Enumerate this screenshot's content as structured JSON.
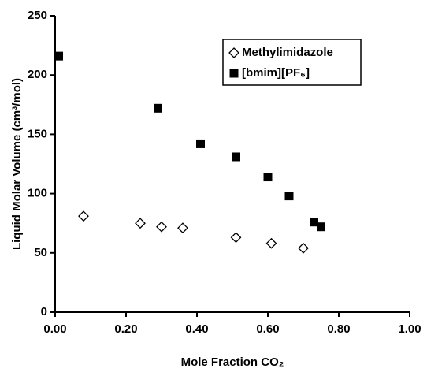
{
  "chart_data": {
    "type": "scatter",
    "x_label": "Mole Fraction CO₂",
    "y_label": "Liquid Molar Volume  (cm³/mol)",
    "xlim": [
      0,
      1
    ],
    "ylim": [
      0,
      250
    ],
    "xticks": [
      {
        "value": 0,
        "label": "0.00"
      },
      {
        "value": 0.2,
        "label": "0.20"
      },
      {
        "value": 0.4,
        "label": "0.40"
      },
      {
        "value": 0.6,
        "label": "0.60"
      },
      {
        "value": 0.8,
        "label": "0.80"
      },
      {
        "value": 1,
        "label": "1.00"
      }
    ],
    "yticks": [
      0,
      50,
      100,
      150,
      200,
      250
    ],
    "grid": false,
    "legend": "upper right",
    "series": [
      {
        "name": "Methylimidazole",
        "color": "#000000",
        "marker": "diamond",
        "filled": false,
        "x": [
          0.08,
          0.24,
          0.3,
          0.36,
          0.51,
          0.61,
          0.7
        ],
        "values": [
          81,
          75,
          72,
          71,
          63,
          58,
          54
        ]
      },
      {
        "name": "[bmim][PF₆]",
        "color": "#000000",
        "marker": "square",
        "filled": true,
        "x": [
          0.01,
          0.29,
          0.41,
          0.51,
          0.6,
          0.66,
          0.73,
          0.75
        ],
        "values": [
          216,
          172,
          142,
          131,
          114,
          98,
          76,
          72
        ]
      }
    ]
  }
}
